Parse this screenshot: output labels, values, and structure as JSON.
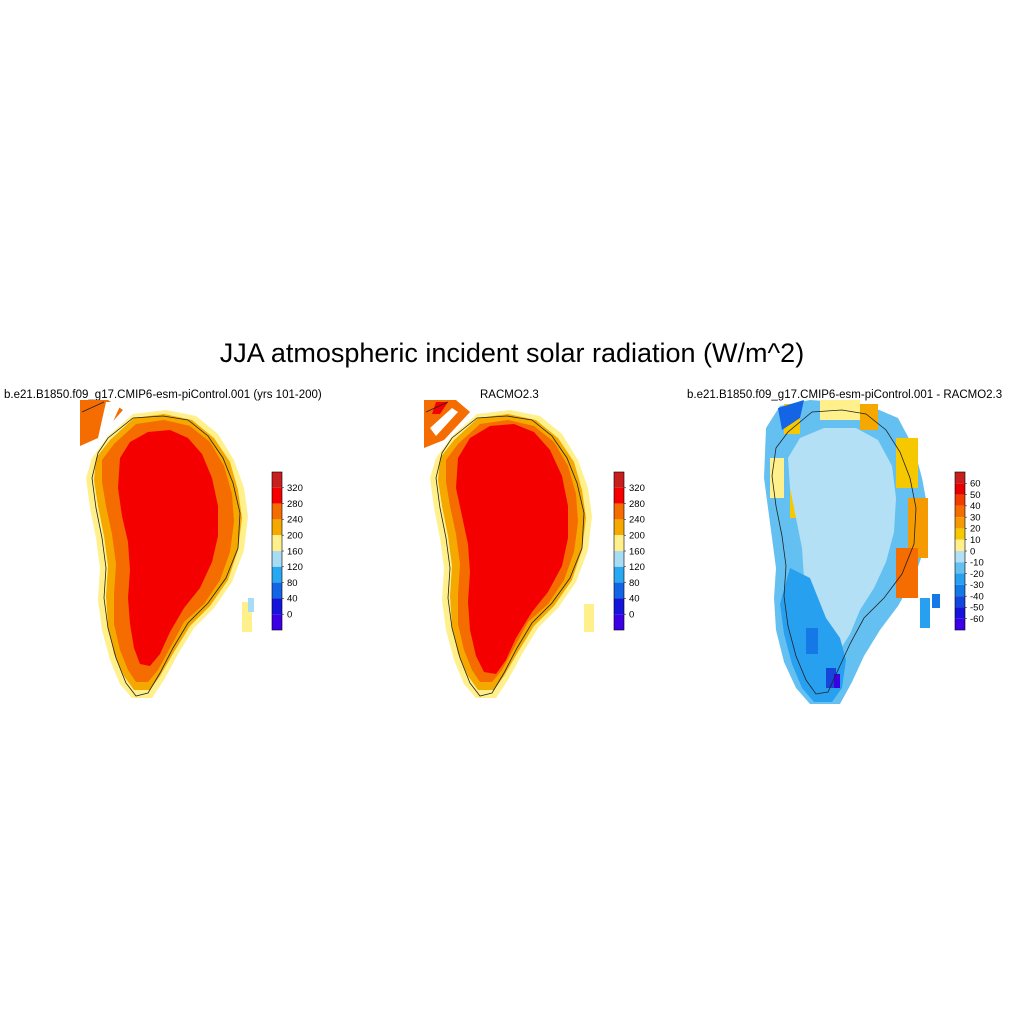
{
  "figure": {
    "title": "JJA atmospheric incident solar radiation (W/m^2)"
  },
  "panels": [
    {
      "id": "model",
      "title": "b.e21.B1850.f09_g17.CMIP6-esm-piControl.001 (yrs 101-200)",
      "colorbar": {
        "labels": [
          "320",
          "280",
          "240",
          "200",
          "160",
          "120",
          "80",
          "40",
          "0"
        ],
        "colors": [
          "#c81e1e",
          "#f50000",
          "#f56c00",
          "#f5a800",
          "#fff08c",
          "#a8dcf5",
          "#28a8f0",
          "#1464e6",
          "#1414dc",
          "#3c00e6"
        ]
      }
    },
    {
      "id": "racmo",
      "title": "RACMO2.3",
      "colorbar": {
        "labels": [
          "320",
          "280",
          "240",
          "200",
          "160",
          "120",
          "80",
          "40",
          "0"
        ],
        "colors": [
          "#c81e1e",
          "#f50000",
          "#f56c00",
          "#f5a800",
          "#fff08c",
          "#a8dcf5",
          "#28a8f0",
          "#1464e6",
          "#1414dc",
          "#3c00e6"
        ]
      }
    },
    {
      "id": "diff",
      "title": "b.e21.B1850.f09_g17.CMIP6-esm-piControl.001 - RACMO2.3",
      "colorbar": {
        "labels": [
          "60",
          "50",
          "40",
          "30",
          "20",
          "10",
          "0",
          "-10",
          "-20",
          "-30",
          "-40",
          "-50",
          "-60"
        ],
        "colors": [
          "#c81e1e",
          "#e60000",
          "#f53c00",
          "#f56c00",
          "#f59a00",
          "#f5c800",
          "#fff08c",
          "#b4e0f5",
          "#64c0f0",
          "#28a0f0",
          "#1478e6",
          "#1446dc",
          "#1414dc",
          "#3c00e6"
        ]
      }
    }
  ]
}
